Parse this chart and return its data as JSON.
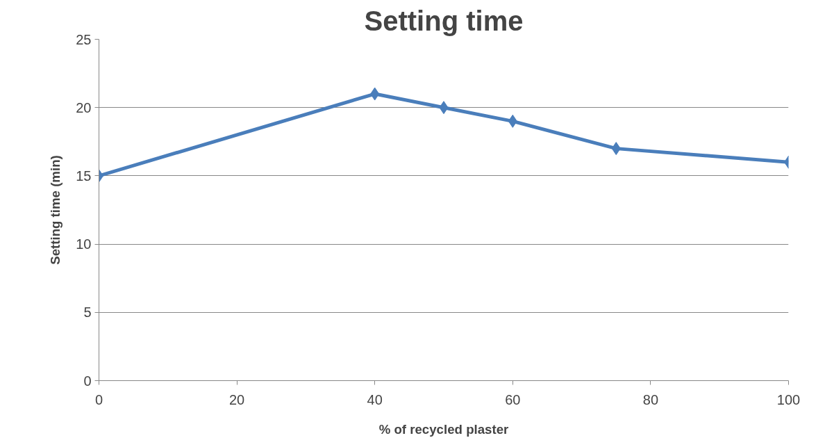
{
  "chart_data": {
    "type": "line",
    "title": "Setting time",
    "xlabel": "% of recycled plaster",
    "ylabel": "Setting time (min)",
    "x": [
      0,
      40,
      50,
      60,
      75,
      100
    ],
    "series": [
      {
        "color": "#4a7ebb",
        "values": [
          15,
          21,
          20,
          19,
          17,
          16
        ]
      }
    ],
    "xlim": [
      0,
      100
    ],
    "xticks": [
      0,
      20,
      40,
      60,
      80,
      100
    ],
    "ylim": [
      0,
      25
    ],
    "yticks": [
      0,
      5,
      10,
      15,
      20,
      25
    ],
    "grid": "y",
    "marker": "diamond",
    "line_style": "solid"
  }
}
